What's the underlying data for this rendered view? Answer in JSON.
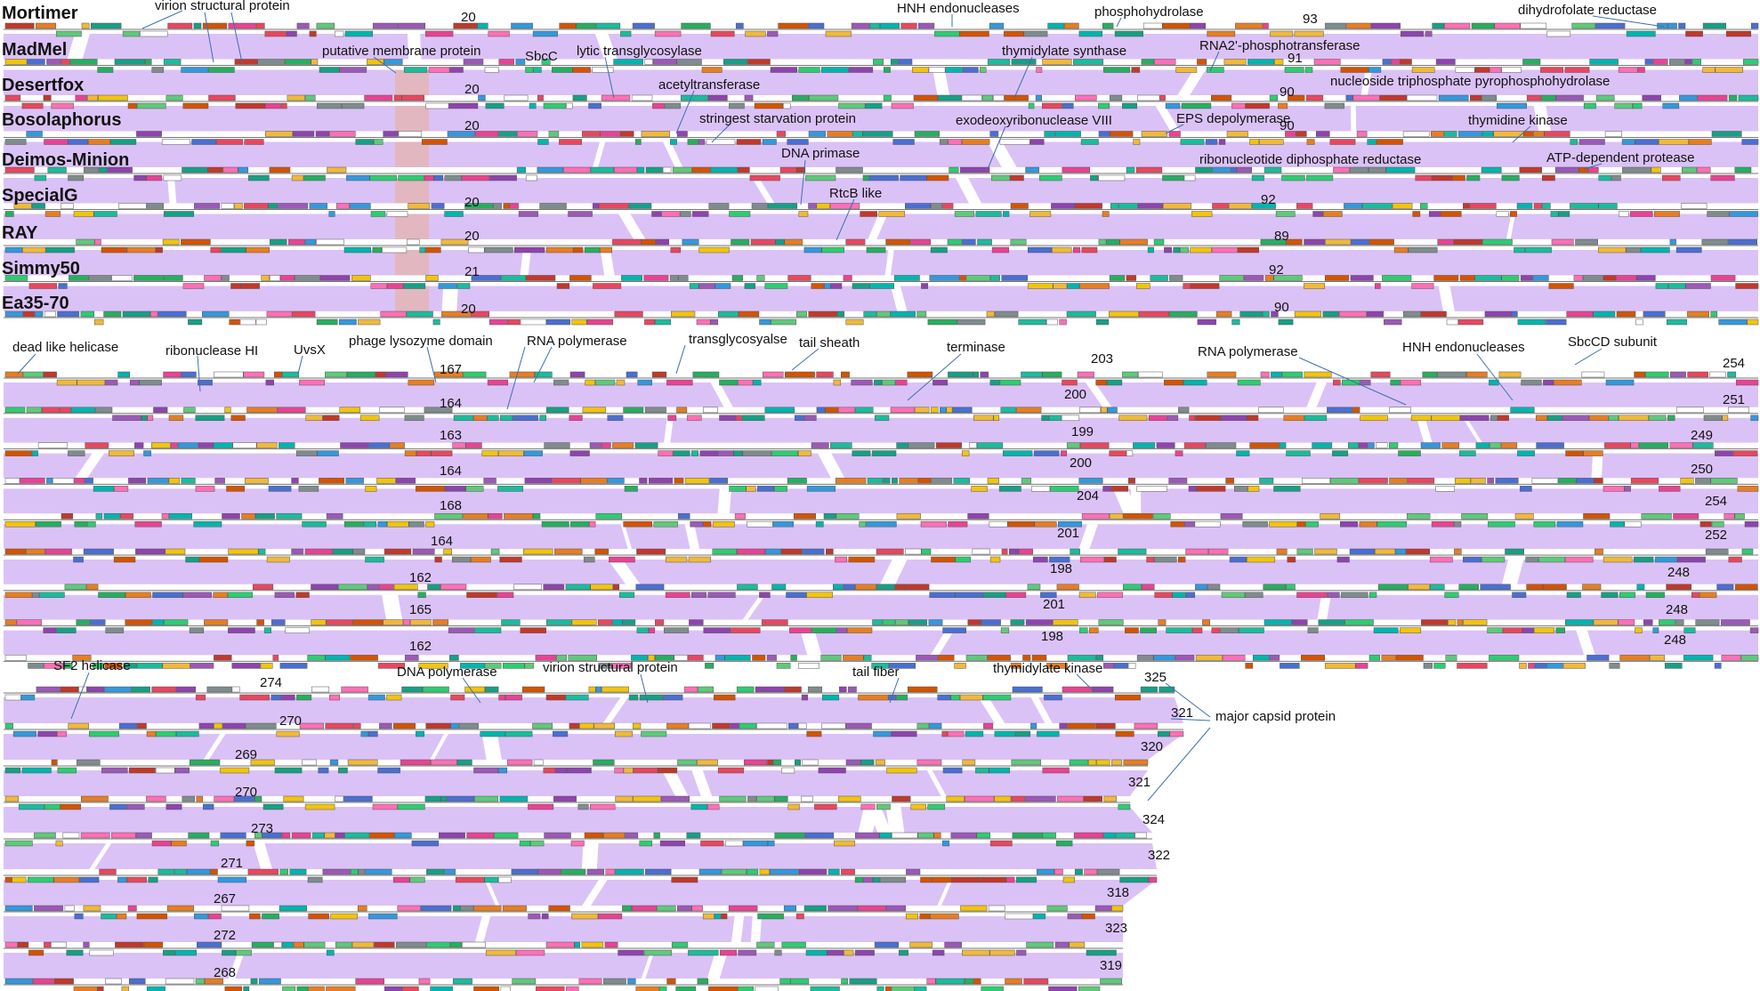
{
  "phages": [
    "Mortimer",
    "MadMel",
    "Desertfox",
    "Bosolaphorus",
    "Deimos-Minion",
    "SpecialG",
    "RAY",
    "Simmy50",
    "Ea35-70"
  ],
  "colors": {
    "similarity_band": "#d9bff5",
    "high_similarity": "#f4a259",
    "callout_line": "#3b6fb0",
    "gene_palette": [
      "#e8475f",
      "#4a6fd1",
      "#5fc97a",
      "#f0b93a",
      "#9b59b6",
      "#1abc9c",
      "#e67e22",
      "#e84393",
      "#2ecc71",
      "#3498db",
      "#f1c40f",
      "#8e44ad",
      "#16a085",
      "#d35400",
      "#c0392b",
      "#27ae60",
      "#7f8c8d",
      "#ffffff",
      "#ff6fb5",
      "#00b5ad"
    ]
  },
  "segments": [
    {
      "name": "segment-1",
      "gene_numbers": [
        "20",
        "20",
        "20",
        "20",
        "20",
        "20",
        "20",
        "21",
        "20"
      ],
      "gene_numbers_b": [
        "93",
        "91",
        "90",
        "90",
        "",
        "92",
        "89",
        "92",
        "90"
      ],
      "labels": [
        "virion structural protein",
        "putative membrane protein",
        "SbcC",
        "lytic transglycosylase",
        "acetyltransferase",
        "stringest starvation protein",
        "DNA primase",
        "RtcB like",
        "HNH endonucleases",
        "thymidylate synthase",
        "exodeoxyribonuclease VIII",
        "phosphohydrolase",
        "RNA2'-phosphotransferase",
        "EPS depolymerase",
        "ribonucleotide diphosphate reductase",
        "nucleoside triphosphate pyrophosphohydrolase",
        "dihydrofolate reductase",
        "thymidine kinase",
        "ATP-dependent protease"
      ]
    },
    {
      "name": "segment-2",
      "gene_numbers": [
        "167",
        "164",
        "163",
        "164",
        "168",
        "164",
        "162",
        "165",
        "162"
      ],
      "gene_numbers_b": [
        "203",
        "200",
        "199",
        "200",
        "204",
        "201",
        "198",
        "201",
        "198"
      ],
      "gene_numbers_c": [
        "254",
        "251",
        "249",
        "250",
        "254",
        "252",
        "248",
        "248",
        "248"
      ],
      "labels": [
        "dead like helicase",
        "ribonuclease HI",
        "UvsX",
        "phage lysozyme domain",
        "RNA polymerase",
        "transglycosyalse",
        "tail sheath",
        "terminase",
        "RNA polymerase",
        "HNH endonucleases",
        "SbcCD subunit"
      ]
    },
    {
      "name": "segment-3",
      "gene_numbers": [
        "274",
        "270",
        "269",
        "270",
        "273",
        "271",
        "267",
        "272",
        "268"
      ],
      "gene_numbers_b": [
        "325",
        "321",
        "320",
        "321",
        "324",
        "322",
        "318",
        "323",
        "319"
      ],
      "labels": [
        "SF2 helicase",
        "DNA polymerase",
        "virion structural protein",
        "tail fiber",
        "thymidylate kinase",
        "major capsid protein"
      ]
    }
  ]
}
